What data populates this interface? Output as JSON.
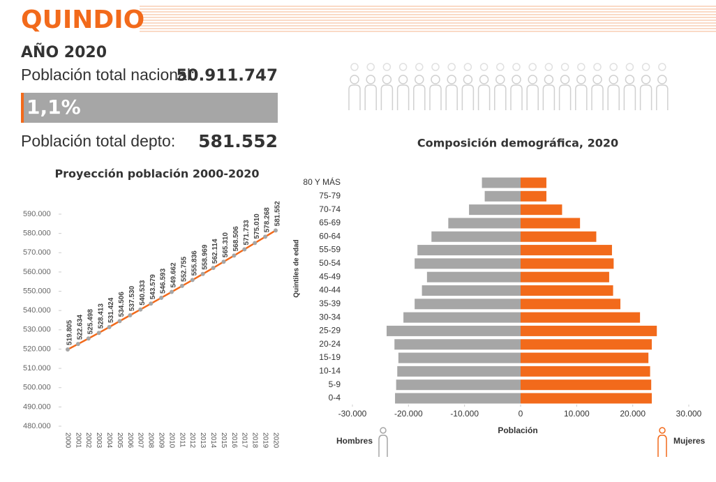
{
  "header": {
    "title": "QUINDIO",
    "year": "AÑO 2020",
    "national_label": "Población total nacional:",
    "national_value": "50.911.747",
    "share": 1.1,
    "share_label": "1,1%",
    "dept_label": "Población total depto:",
    "dept_value": "581.552"
  },
  "chart_data": [
    {
      "type": "line",
      "title": "Proyección población 2000-2020",
      "categories": [
        "2000",
        "2001",
        "2002",
        "2003",
        "2004",
        "2005",
        "2006",
        "2007",
        "2008",
        "2009",
        "2010",
        "2011",
        "2012",
        "2013",
        "2014",
        "2015",
        "2016",
        "2017",
        "2018",
        "2019",
        "2020"
      ],
      "series": [
        {
          "color": "#f26a1b",
          "values": [
            519805,
            522634,
            525498,
            528413,
            531424,
            534506,
            537530,
            540533,
            543579,
            546593,
            549662,
            552755,
            555836,
            558969,
            562114,
            565310,
            568506,
            571733,
            575010,
            578268,
            581552
          ],
          "value_labels": [
            "519.805",
            "522.634",
            "525.498",
            "528.413",
            "531.424",
            "534.506",
            "537.530",
            "540.533",
            "543.579",
            "546.593",
            "549.662",
            "552.755",
            "555.836",
            "558.969",
            "562.114",
            "565.310",
            "568.506",
            "571.733",
            "575.010",
            "578.268",
            "581.552"
          ],
          "marker_color": "#a6a6a6"
        }
      ],
      "ylim": [
        480000,
        590000
      ],
      "yticks": [
        {
          "value": 480000,
          "label": "480.000"
        },
        {
          "value": 490000,
          "label": "490.000"
        },
        {
          "value": 500000,
          "label": "500.000"
        },
        {
          "value": 510000,
          "label": "510.000"
        },
        {
          "value": 520000,
          "label": "520.000"
        },
        {
          "value": 530000,
          "label": "530.000"
        },
        {
          "value": 540000,
          "label": "540.000"
        },
        {
          "value": 550000,
          "label": "550.000"
        },
        {
          "value": 560000,
          "label": "560.000"
        },
        {
          "value": 570000,
          "label": "570.000"
        },
        {
          "value": 580000,
          "label": "580.000"
        },
        {
          "value": 590000,
          "label": "590.000"
        }
      ]
    },
    {
      "type": "pyramid",
      "title": "Composición demográfica, 2020",
      "x_label": "Población",
      "y_label": "Quintiles de edad",
      "categories": [
        "0-4",
        "5-9",
        "10-14",
        "15-19",
        "20-24",
        "25-29",
        "30-34",
        "35-39",
        "40-44",
        "45-49",
        "50-54",
        "55-59",
        "60-64",
        "65-69",
        "70-74",
        "75-79",
        "80 Y MÁS"
      ],
      "series": [
        {
          "name": "Hombres",
          "color": "#a6a6a6",
          "values": [
            -22400,
            -22200,
            -22000,
            -21800,
            -22500,
            -23900,
            -20900,
            -18900,
            -17600,
            -16700,
            -18900,
            -18400,
            -15900,
            -12900,
            -9200,
            -6400,
            -6900
          ]
        },
        {
          "name": "Mujeres",
          "color": "#f26a1b",
          "values": [
            23400,
            23300,
            23100,
            22800,
            23400,
            24300,
            21300,
            17800,
            16500,
            15800,
            16600,
            16300,
            13500,
            10600,
            7400,
            4600,
            4600
          ]
        }
      ],
      "xlim": [
        -30000,
        30000
      ],
      "xticks": [
        {
          "value": -30000,
          "label": "-30.000"
        },
        {
          "value": -20000,
          "label": "-20.000"
        },
        {
          "value": -10000,
          "label": "-10.000"
        },
        0,
        {
          "value": 10000,
          "label": "10.000"
        },
        {
          "value": 20000,
          "label": "20.000"
        },
        {
          "value": 30000,
          "label": "30.000"
        }
      ]
    }
  ]
}
